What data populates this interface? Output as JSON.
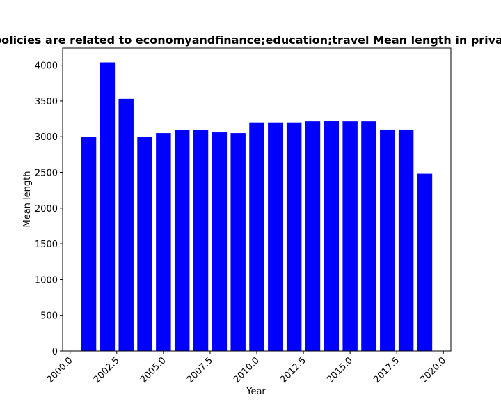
{
  "chart_data": {
    "type": "bar",
    "title": "Privacy policies are related to economyandfinance;education;travel Mean length in privacy policies",
    "xlabel": "Year",
    "ylabel": "Mean length",
    "x": [
      2001,
      2002,
      2003,
      2004,
      2005,
      2006,
      2007,
      2008,
      2009,
      2010,
      2011,
      2012,
      2013,
      2014,
      2015,
      2016,
      2017,
      2018,
      2019
    ],
    "values": [
      3000,
      4040,
      3530,
      3000,
      3050,
      3090,
      3090,
      3060,
      3050,
      3200,
      3200,
      3200,
      3215,
      3225,
      3215,
      3215,
      3100,
      3100,
      2480
    ],
    "xlim": [
      1999.6,
      2020.4
    ],
    "ylim": [
      0,
      4240
    ],
    "xticks": [
      2000.0,
      2002.5,
      2005.0,
      2007.5,
      2010.0,
      2012.5,
      2015.0,
      2017.5,
      2020.0
    ],
    "xtick_labels": [
      "2000.0",
      "2002.5",
      "2005.0",
      "2007.5",
      "2010.0",
      "2012.5",
      "2015.0",
      "2017.5",
      "2020.0"
    ],
    "yticks": [
      0,
      500,
      1000,
      1500,
      2000,
      2500,
      3000,
      3500,
      4000
    ],
    "ytick_labels": [
      "0",
      "500",
      "1000",
      "1500",
      "2000",
      "2500",
      "3000",
      "3500",
      "4000"
    ],
    "bar_width": 0.8,
    "bar_color": "#0000ff",
    "grid": false,
    "legend": "none"
  }
}
